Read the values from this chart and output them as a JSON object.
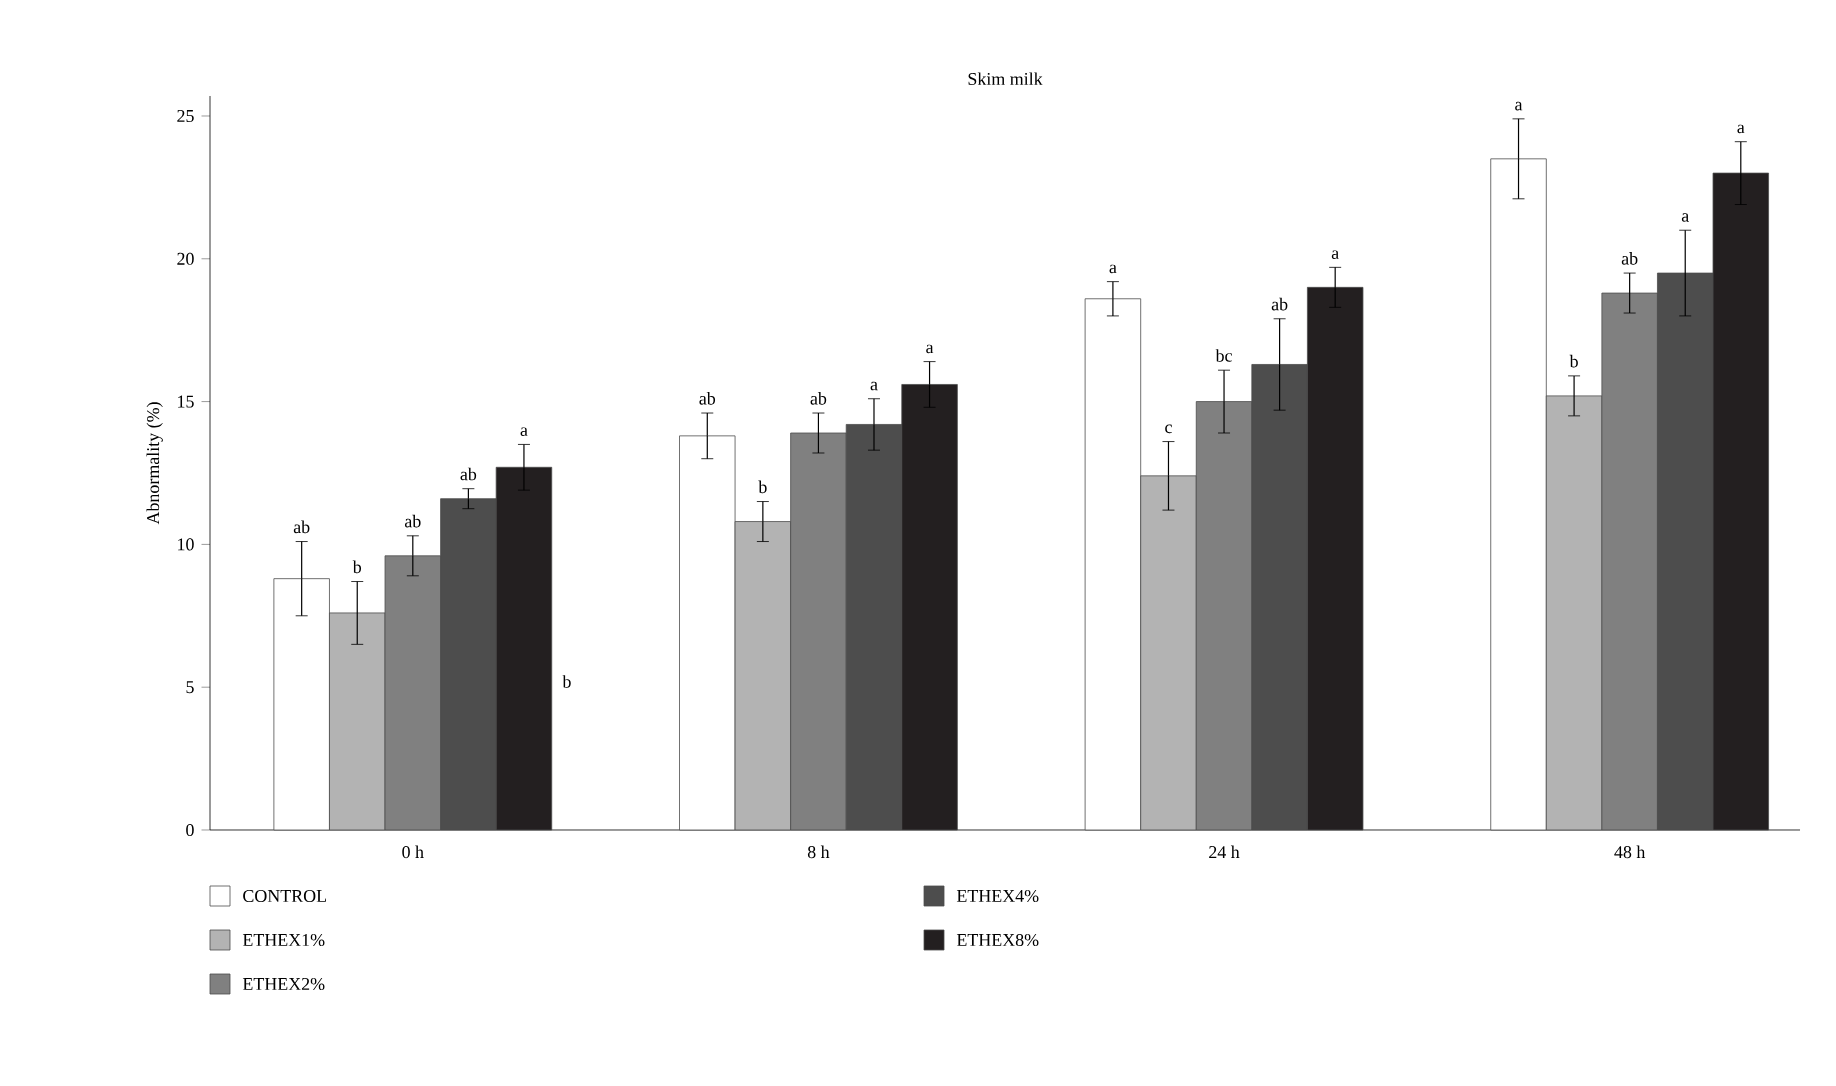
{
  "chart_data": {
    "type": "bar",
    "title": "Skim milk",
    "ylabel": "Abnormality (%)",
    "categories": [
      "0 h",
      "8 h",
      "24 h",
      "48 h"
    ],
    "ylim": [
      0,
      25.7
    ],
    "yticks": [
      0,
      5,
      10,
      15,
      20,
      25
    ],
    "legend": "bottom",
    "grid": false,
    "series": [
      {
        "name": "CONTROL",
        "color": "#ffffff",
        "values": [
          8.8,
          13.8,
          18.6,
          23.5
        ],
        "errors": [
          1.3,
          0.8,
          0.6,
          1.4
        ],
        "value_labels": [
          "ab",
          "ab",
          "a",
          "a"
        ]
      },
      {
        "name": "ETHEX1%",
        "color": "#b3b3b3",
        "values": [
          7.6,
          10.8,
          12.4,
          15.2
        ],
        "errors": [
          1.1,
          0.7,
          1.2,
          0.7
        ],
        "value_labels": [
          "b",
          "b",
          "c",
          "b"
        ]
      },
      {
        "name": "ETHEX2%",
        "color": "#808080",
        "values": [
          9.6,
          13.9,
          15.0,
          18.8
        ],
        "errors": [
          0.7,
          0.7,
          1.1,
          0.7
        ],
        "value_labels": [
          "ab",
          "ab",
          "bc",
          "ab"
        ]
      },
      {
        "name": "ETHEX4%",
        "color": "#4d4d4d",
        "values": [
          11.6,
          14.2,
          16.3,
          19.5
        ],
        "errors": [
          0.35,
          0.9,
          1.6,
          1.5
        ],
        "value_labels": [
          "ab",
          "a",
          "ab",
          "a"
        ]
      },
      {
        "name": "ETHEX8%",
        "color": "#231f20",
        "values": [
          12.7,
          15.6,
          19.0,
          23.0
        ],
        "errors": [
          0.8,
          0.8,
          0.7,
          1.1
        ],
        "value_labels": [
          "a",
          "a",
          "a",
          "a"
        ]
      }
    ],
    "annotations": [
      "b"
    ]
  }
}
